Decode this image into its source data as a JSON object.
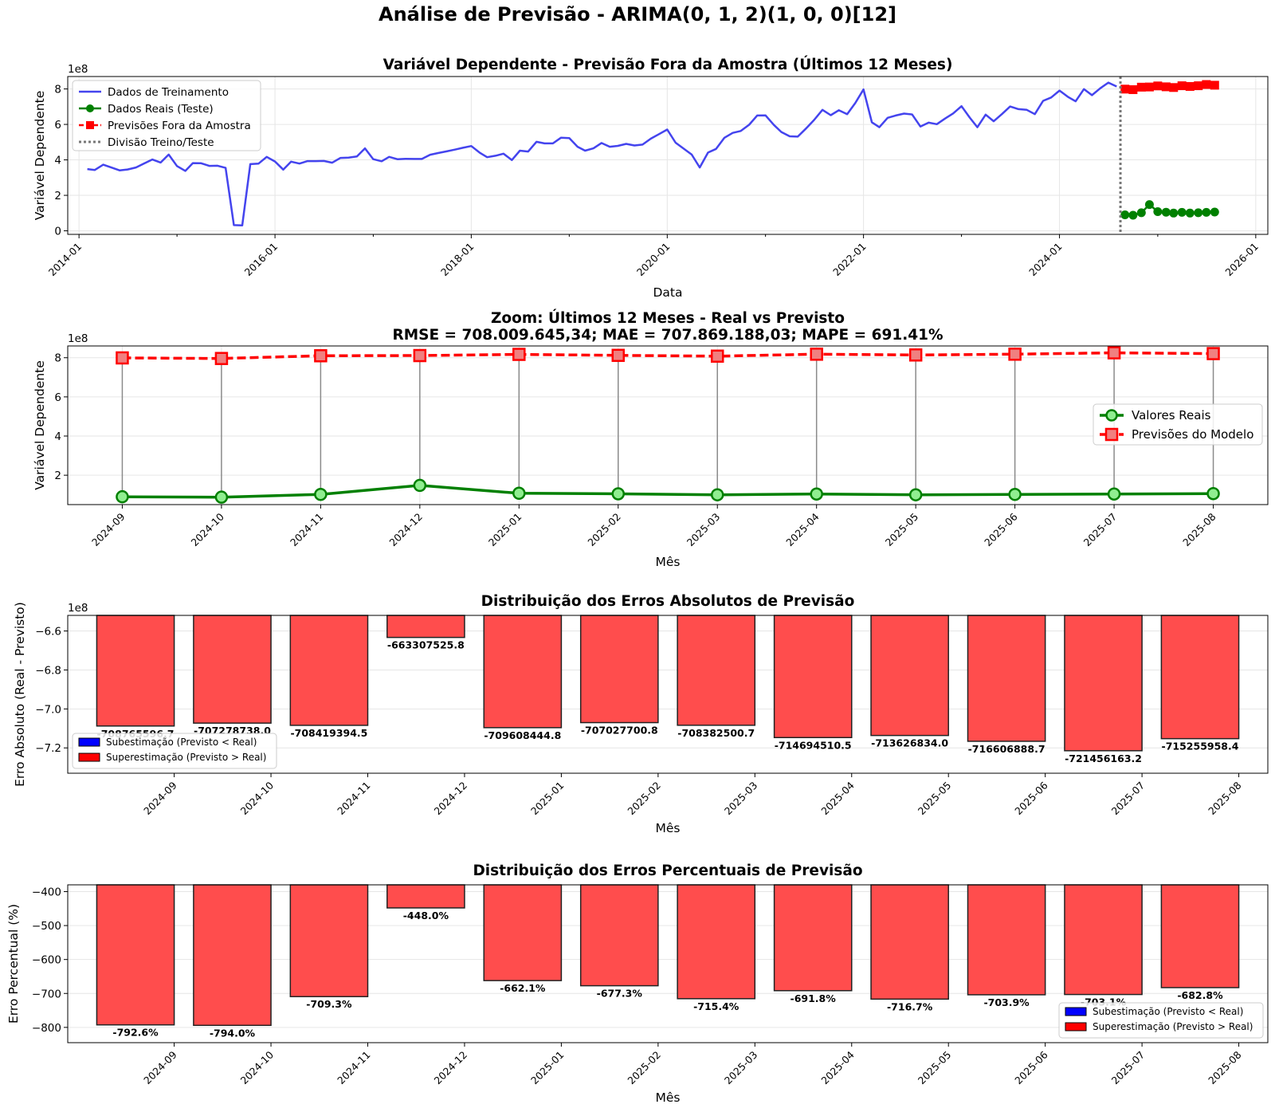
{
  "suptitle": "Análise de Previsão - ARIMA(0, 1, 2)(1, 0, 0)[12]",
  "colors": {
    "train": "#4444ee",
    "real": "#008000",
    "forecast": "#ff0000",
    "bar": "#ff4d4d",
    "under": "#0000ff",
    "over": "#ff0000",
    "split": "#777777",
    "grid": "#e6e6e6"
  },
  "chart_data": [
    {
      "type": "line",
      "title": "Variável Dependente - Previsão Fora da Amostra (Últimos 12 Meses)",
      "xlabel": "Data",
      "ylabel": "Variável Dependente",
      "y_multiplier": "1e8",
      "xlim": [
        "2013-11-20",
        "2026-02-15"
      ],
      "ylim": [
        -0.2,
        8.7
      ],
      "xticks": [
        "2014-01",
        "2016-01",
        "2018-01",
        "2020-01",
        "2022-01",
        "2024-01",
        "2026-01"
      ],
      "yticks": [
        0,
        2,
        4,
        6,
        8
      ],
      "legend_position": "upper left",
      "split_date": "2024-08-15",
      "train_start": "2014-02",
      "legend": {
        "train": "Dados de Treinamento",
        "real": "Dados Reais (Teste)",
        "forecast": "Previsões Fora da Amostra",
        "split": "Divisão Treino/Teste"
      },
      "train_values": [
        3.48,
        3.43,
        3.73,
        3.57,
        3.41,
        3.46,
        3.57,
        3.8,
        4.02,
        3.85,
        4.3,
        3.65,
        3.38,
        3.82,
        3.81,
        3.66,
        3.67,
        3.55,
        0.32,
        0.31,
        3.76,
        3.79,
        4.17,
        3.91,
        3.45,
        3.9,
        3.79,
        3.93,
        3.93,
        3.94,
        3.84,
        4.11,
        4.13,
        4.19,
        4.65,
        4.04,
        3.92,
        4.17,
        4.04,
        4.06,
        4.05,
        4.05,
        4.29,
        4.39,
        4.48,
        4.58,
        4.68,
        4.78,
        4.41,
        4.15,
        4.23,
        4.35,
        3.99,
        4.52,
        4.47,
        5.02,
        4.93,
        4.93,
        5.25,
        5.23,
        4.74,
        4.52,
        4.65,
        4.95,
        4.74,
        4.79,
        4.9,
        4.81,
        4.86,
        5.2,
        5.45,
        5.71,
        4.97,
        4.65,
        4.3,
        3.57,
        4.41,
        4.62,
        5.25,
        5.52,
        5.63,
        5.98,
        6.5,
        6.51,
        5.97,
        5.57,
        5.33,
        5.31,
        5.77,
        6.25,
        6.82,
        6.52,
        6.8,
        6.58,
        7.2,
        7.97,
        6.12,
        5.84,
        6.37,
        6.5,
        6.61,
        6.56,
        5.88,
        6.1,
        6.01,
        6.33,
        6.62,
        7.03,
        6.38,
        5.84,
        6.55,
        6.18,
        6.59,
        7.01,
        6.86,
        6.82,
        6.58,
        7.33,
        7.52,
        7.91,
        7.56,
        7.3,
        7.99,
        7.65,
        8.04,
        8.36,
        8.14
      ]
    },
    {
      "type": "line",
      "title": "Zoom: Últimos 12 Meses - Real vs Previsto",
      "subtitle": "RMSE = 708.009.645,34; MAE = 707.869.188,03; MAPE = 691.41%",
      "xlabel": "Mês",
      "ylabel": "Variável Dependente",
      "y_multiplier": "1e8",
      "ylim": [
        0.5,
        8.6
      ],
      "yticks": [
        2,
        4,
        6,
        8
      ],
      "legend_position": "center right",
      "categories": [
        "2024-09",
        "2024-10",
        "2024-11",
        "2024-12",
        "2025-01",
        "2025-02",
        "2025-03",
        "2025-04",
        "2025-05",
        "2025-06",
        "2025-07",
        "2025-08"
      ],
      "series": [
        {
          "name": "Valores Reais",
          "values": [
            0.9,
            0.88,
            1.02,
            1.48,
            1.08,
            1.05,
            1.0,
            1.04,
            1.0,
            1.02,
            1.04,
            1.06
          ]
        },
        {
          "name": "Previsões do Modelo",
          "values": [
            7.99,
            7.96,
            8.1,
            8.11,
            8.17,
            8.12,
            8.08,
            8.18,
            8.14,
            8.18,
            8.25,
            8.21
          ]
        }
      ]
    },
    {
      "type": "bar",
      "title": "Distribuição dos Erros Absolutos de Previsão",
      "xlabel": "Mês",
      "ylabel": "Erro Absoluto (Real - Previsto)",
      "y_multiplier": "1e8",
      "ylim": [
        -7.33,
        -6.52
      ],
      "yticks": [
        -6.6,
        -6.8,
        -7.0,
        -7.2
      ],
      "ytick_labels": [
        "−6.6",
        "−6.8",
        "−7.0",
        "−7.2"
      ],
      "legend_position": "lower left",
      "legend": [
        "Subestimação (Previsto < Real)",
        "Superestimação (Previsto > Real)"
      ],
      "categories": [
        "2024-09",
        "2024-10",
        "2024-11",
        "2024-12",
        "2025-01",
        "2025-02",
        "2025-03",
        "2025-04",
        "2025-05",
        "2025-06",
        "2025-07",
        "2025-08"
      ],
      "values": [
        -7.087655967,
        -7.07278738,
        -7.084193945,
        -6.633075258,
        -7.096084448,
        -7.070277008,
        -7.083825007,
        -7.146945105,
        -7.13626834,
        -7.166068887,
        -7.214561632,
        -7.152559584
      ],
      "labels": [
        "-708765596.7",
        "-707278738.0",
        "-708419394.5",
        "-663307525.8",
        "-709608444.8",
        "-707027700.8",
        "-708382500.7",
        "-714694510.5",
        "-713626834.0",
        "-716606888.7",
        "-721456163.2",
        "-715255958.4"
      ]
    },
    {
      "type": "bar",
      "title": "Distribuição dos Erros Percentuais de Previsão",
      "xlabel": "Mês",
      "ylabel": "Erro Percentual (%)",
      "ylim": [
        -845,
        -380
      ],
      "yticks": [
        -400,
        -500,
        -600,
        -700,
        -800
      ],
      "ytick_labels": [
        "−400",
        "−500",
        "−600",
        "−700",
        "−800"
      ],
      "legend_position": "lower right",
      "legend": [
        "Subestimação (Previsto < Real)",
        "Superestimação (Previsto > Real)"
      ],
      "categories": [
        "2024-09",
        "2024-10",
        "2024-11",
        "2024-12",
        "2025-01",
        "2025-02",
        "2025-03",
        "2025-04",
        "2025-05",
        "2025-06",
        "2025-07",
        "2025-08"
      ],
      "values": [
        -792.6,
        -794.0,
        -709.3,
        -448.0,
        -662.1,
        -677.3,
        -715.4,
        -691.8,
        -716.7,
        -703.9,
        -703.1,
        -682.8
      ],
      "labels": [
        "-792.6%",
        "-794.0%",
        "-709.3%",
        "-448.0%",
        "-662.1%",
        "-677.3%",
        "-715.4%",
        "-691.8%",
        "-716.7%",
        "-703.9%",
        "-703.1%",
        "-682.8%"
      ]
    }
  ]
}
